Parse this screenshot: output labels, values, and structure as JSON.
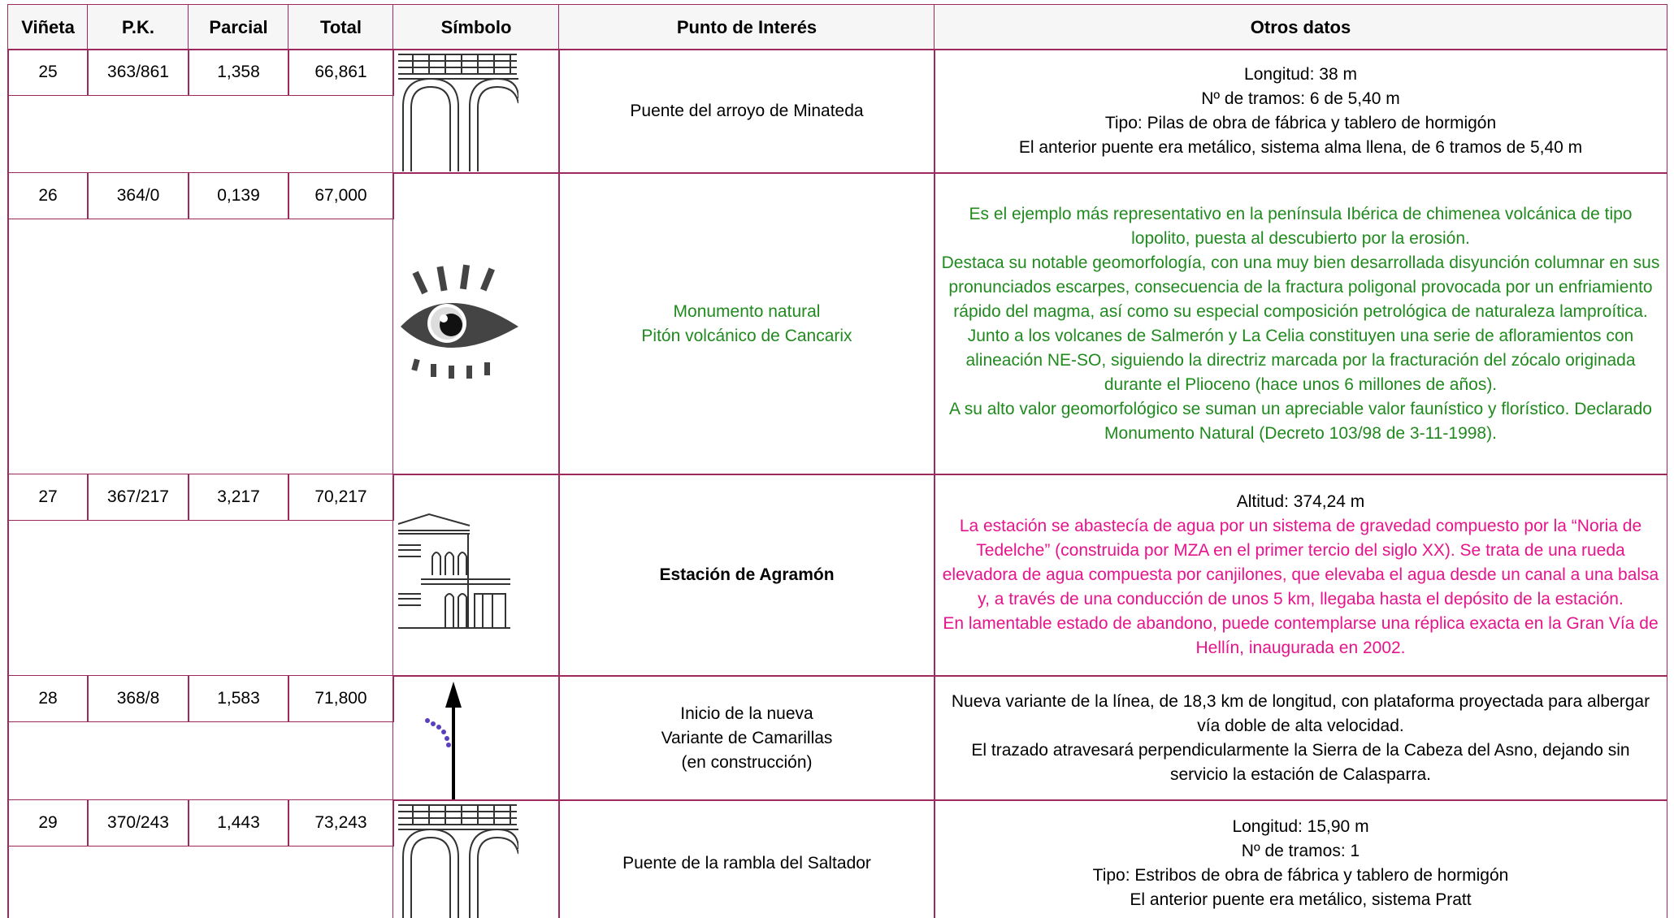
{
  "header": [
    "Viñeta",
    "P.K.",
    "Parcial",
    "Total",
    "Símbolo",
    "Punto de Interés",
    "Otros datos"
  ],
  "rows": [
    {
      "vineta": "25",
      "pk": "363/861",
      "parcial": "1,358",
      "total": "66,861",
      "punto": [
        "Puente del arroyo de Minateda"
      ],
      "otros": [
        "Longitud: 38 m",
        "Nº de tramos: 6 de 5,40 m",
        "Tipo: Pilas de obra de fábrica y tablero de hormigón",
        "El anterior puente era metálico, sistema alma llena, de 6 tramos de 5,40 m"
      ]
    },
    {
      "vineta": "26",
      "pk": "364/0",
      "parcial": "0,139",
      "total": "67,000",
      "punto": [
        "Monumento natural",
        "Pitón volcánico de Cancarix"
      ],
      "otros": [
        "Es el ejemplo más representativo en la península Ibérica de chimenea volcánica de tipo lopolito, puesta al descubierto por la erosión.",
        "Destaca su notable geomorfología, con una muy bien desarrollada disyunción columnar en sus pronunciados escarpes, consecuencia de la fractura poligonal provocada por un enfriamiento rápido del magma, así como su especial composición petrológica de naturaleza lamproítica.",
        "Junto a los volcanes de Salmerón y La Celia constituyen una serie de afloramientos con alineación NE-SO, siguiendo la directriz marcada por la fracturación del zócalo originada durante el Plioceno (hace unos 6 millones de años).",
        "A su alto valor geomorfológico se suman un apreciable valor faunístico y florístico. Declarado Monumento Natural (Decreto 103/98 de 3-11-1998)."
      ]
    },
    {
      "vineta": "27",
      "pk": "367/217",
      "parcial": "3,217",
      "total": "70,217",
      "punto": [
        "Estación de Agramón"
      ],
      "otros": [
        "Altitud: 374,24 m",
        "La estación se abastecía de agua por un sistema de gravedad compuesto por la “Noria de Tedelche” (construida por MZA en el primer tercio del siglo XX). Se trata de una rueda elevadora de agua compuesta por canjilones, que elevaba el agua desde un canal a una balsa y, a través de una conducción de unos 5 km, llegaba hasta el depósito de la estación.",
        "En lamentable estado de abandono, puede contemplarse una réplica exacta en la Gran Vía de Hellín, inaugurada en 2002."
      ]
    },
    {
      "vineta": "28",
      "pk": "368/8",
      "parcial": "1,583",
      "total": "71,800",
      "punto": [
        "Inicio de la nueva",
        "Variante de Camarillas",
        "(en construcción)"
      ],
      "otros": [
        "Nueva variante de la línea, de 18,3 km de longitud, con plataforma proyectada para albergar vía doble de alta velocidad.",
        "El trazado atravesará perpendicularmente la Sierra de la Cabeza del Asno, dejando sin servicio la estación de Calasparra."
      ]
    },
    {
      "vineta": "29",
      "pk": "370/243",
      "parcial": "1,443",
      "total": "73,243",
      "punto": [
        "Puente de la rambla del Saltador"
      ],
      "otros": [
        "Longitud: 15,90 m",
        "Nº de tramos: 1",
        "Tipo: Estribos de obra de fábrica y tablero de hormigón",
        "El anterior puente era metálico, sistema Pratt"
      ]
    }
  ]
}
